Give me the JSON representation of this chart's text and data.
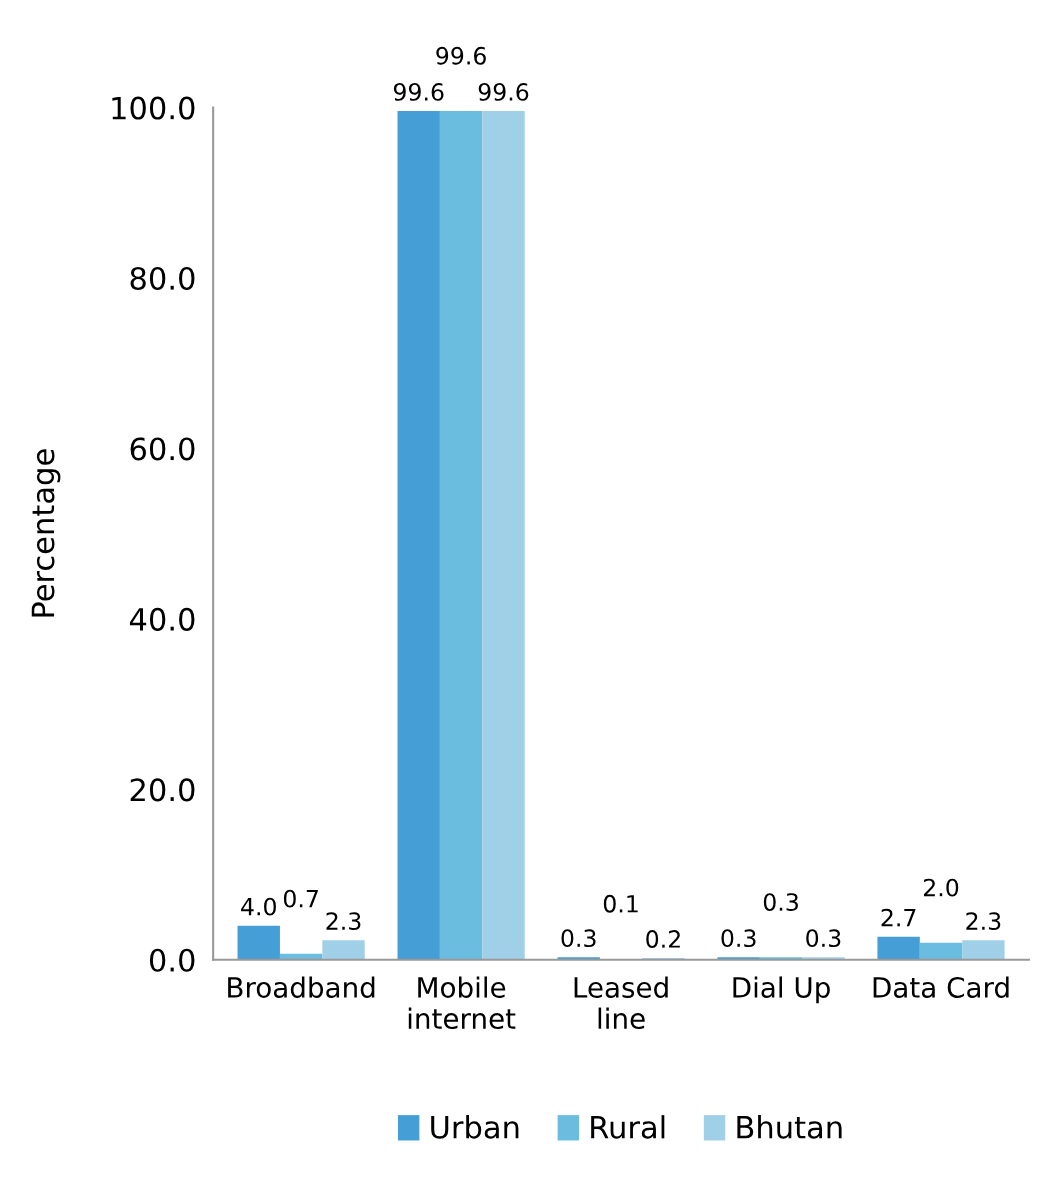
{
  "chart_data": {
    "type": "bar",
    "ylabel": "Percentage",
    "categories": [
      "Broadband",
      "Mobile\ninternet",
      "Leased\nline",
      "Dial Up",
      "Data Card"
    ],
    "series": [
      {
        "name": "Urban",
        "color": "#459fd6",
        "values": [
          4.0,
          99.6,
          0.3,
          0.3,
          2.7
        ],
        "value_labels": [
          "4.0",
          "99.6",
          "0.3",
          "0.3",
          "2.7"
        ]
      },
      {
        "name": "Rural",
        "color": "#6bbde0",
        "values": [
          0.7,
          99.6,
          0.1,
          0.3,
          2.0
        ],
        "value_labels": [
          "0.7",
          "99.6",
          "0.1",
          "0.3",
          "2.0"
        ]
      },
      {
        "name": "Bhutan",
        "color": "#a0d0e8",
        "values": [
          2.3,
          99.6,
          0.2,
          0.3,
          2.3
        ],
        "value_labels": [
          "2.3",
          "99.6",
          "0.2",
          "0.3",
          "2.3"
        ]
      }
    ],
    "ylim": [
      0,
      100
    ],
    "yticks": [
      {
        "value": 0,
        "label": "0.0"
      },
      {
        "value": 20,
        "label": "20.0"
      },
      {
        "value": 40,
        "label": "40.0"
      },
      {
        "value": 60,
        "label": "60.0"
      },
      {
        "value": 80,
        "label": "80.0"
      },
      {
        "value": 100,
        "label": "100.0"
      }
    ],
    "grid": false,
    "legend": "bottom"
  }
}
